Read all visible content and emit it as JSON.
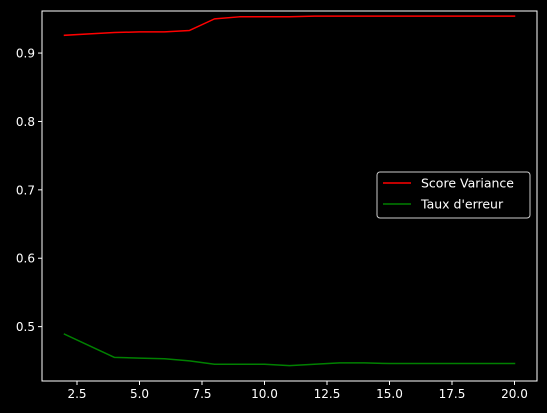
{
  "chart_data": {
    "type": "line",
    "title": "",
    "xlabel": "",
    "ylabel": "",
    "xlim": [
      1.1,
      20.9
    ],
    "ylim": [
      0.4205,
      0.9615
    ],
    "x_ticks": [
      2.5,
      5.0,
      7.5,
      10.0,
      12.5,
      15.0,
      17.5,
      20.0
    ],
    "x_tick_labels": [
      "2.5",
      "5.0",
      "7.5",
      "10.0",
      "12.5",
      "15.0",
      "17.5",
      "20.0"
    ],
    "y_ticks": [
      0.5,
      0.6,
      0.7,
      0.8,
      0.9
    ],
    "y_tick_labels": [
      "0.5",
      "0.6",
      "0.7",
      "0.8",
      "0.9"
    ],
    "grid": false,
    "legend_position": "center-right",
    "x": [
      2,
      3,
      4,
      5,
      6,
      7,
      8,
      9,
      10,
      11,
      12,
      13,
      14,
      15,
      16,
      17,
      18,
      19,
      20
    ],
    "series": [
      {
        "name": "Score Variance",
        "color": "#ff0000",
        "values": [
          0.926,
          0.928,
          0.93,
          0.931,
          0.931,
          0.933,
          0.95,
          0.953,
          0.953,
          0.953,
          0.954,
          0.954,
          0.954,
          0.954,
          0.954,
          0.954,
          0.954,
          0.954,
          0.954
        ]
      },
      {
        "name": "Taux d'erreur",
        "color": "#008000",
        "values": [
          0.489,
          0.472,
          0.455,
          0.454,
          0.453,
          0.45,
          0.445,
          0.445,
          0.445,
          0.443,
          0.445,
          0.447,
          0.447,
          0.446,
          0.446,
          0.446,
          0.446,
          0.446,
          0.446
        ]
      }
    ]
  }
}
